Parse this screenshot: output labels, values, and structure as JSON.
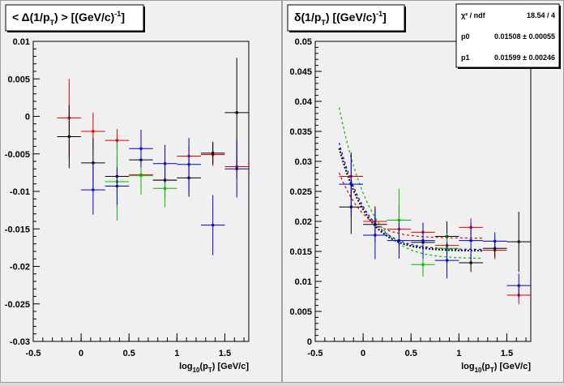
{
  "chart_data": [
    {
      "type": "scatter",
      "title": "< Δ(1/p_T) > [(GeV/c)^-1]",
      "xlabel": "log10(p_T) [GeV/c]",
      "ylabel": "",
      "xlim": [
        -0.5,
        1.75
      ],
      "ylim": [
        -0.03,
        0.01
      ],
      "xticks": [
        -0.5,
        0,
        0.5,
        1,
        1.5
      ],
      "xtick_labels": [
        "-0.5",
        "0",
        "0.5",
        "1",
        "1.5"
      ],
      "yticks": [
        -0.03,
        -0.025,
        -0.02,
        -0.015,
        -0.01,
        -0.005,
        0,
        0.005,
        0.01
      ],
      "ytick_labels": [
        "-0.03",
        "-0.025",
        "-0.02",
        "-0.015",
        "-0.01",
        "-0.005",
        "0",
        "0.005",
        "0.01"
      ],
      "series": [
        {
          "color": "#dd0000",
          "points": [
            {
              "x": -0.125,
              "y": -0.0002,
              "xerr": 0.125,
              "yerr": 0.0052
            },
            {
              "x": 0.125,
              "y": -0.002,
              "xerr": 0.125,
              "yerr": 0.0025
            },
            {
              "x": 0.375,
              "y": -0.0032,
              "xerr": 0.125,
              "yerr": 0.0015
            },
            {
              "x": 0.625,
              "y": -0.0078,
              "xerr": 0.125,
              "yerr": 0.0015
            },
            {
              "x": 0.875,
              "y": -0.0085,
              "xerr": 0.125,
              "yerr": 0.0015
            },
            {
              "x": 1.125,
              "y": -0.0053,
              "xerr": 0.125,
              "yerr": 0.0015
            },
            {
              "x": 1.375,
              "y": -0.0051,
              "xerr": 0.125,
              "yerr": 0.0015
            },
            {
              "x": 1.625,
              "y": -0.0067,
              "xerr": 0.125,
              "yerr": 0.0015
            }
          ]
        },
        {
          "color": "#000000",
          "points": [
            {
              "x": -0.125,
              "y": -0.0027,
              "xerr": 0.125,
              "yerr": 0.0042
            },
            {
              "x": 0.125,
              "y": -0.0062,
              "xerr": 0.125,
              "yerr": 0.0033
            },
            {
              "x": 0.375,
              "y": -0.008,
              "xerr": 0.125,
              "yerr": 0.0025
            },
            {
              "x": 0.625,
              "y": -0.0058,
              "xerr": 0.125,
              "yerr": 0.0025
            },
            {
              "x": 0.875,
              "y": -0.0085,
              "xerr": 0.125,
              "yerr": 0.0025
            },
            {
              "x": 1.125,
              "y": -0.0082,
              "xerr": 0.125,
              "yerr": 0.0025
            },
            {
              "x": 1.375,
              "y": -0.0049,
              "xerr": 0.125,
              "yerr": 0.0015
            },
            {
              "x": 1.625,
              "y": 0.0005,
              "xerr": 0.125,
              "yerr": 0.0073
            }
          ]
        },
        {
          "color": "#00bb00",
          "points": [
            {
              "x": 0.375,
              "y": -0.0087,
              "xerr": 0.125,
              "yerr": 0.0052
            },
            {
              "x": 0.625,
              "y": -0.0079,
              "xerr": 0.125,
              "yerr": 0.0025
            },
            {
              "x": 0.875,
              "y": -0.0096,
              "xerr": 0.125,
              "yerr": 0.0025
            }
          ]
        },
        {
          "color": "#0000cc",
          "points": [
            {
              "x": 0.125,
              "y": -0.0098,
              "xerr": 0.125,
              "yerr": 0.0033
            },
            {
              "x": 0.375,
              "y": -0.0093,
              "xerr": 0.125,
              "yerr": 0.0025
            },
            {
              "x": 0.625,
              "y": -0.0043,
              "xerr": 0.125,
              "yerr": 0.0025
            },
            {
              "x": 0.875,
              "y": -0.0063,
              "xerr": 0.125,
              "yerr": 0.0025
            },
            {
              "x": 1.125,
              "y": -0.0064,
              "xerr": 0.125,
              "yerr": 0.0035
            },
            {
              "x": 1.375,
              "y": -0.0145,
              "xerr": 0.125,
              "yerr": 0.004
            },
            {
              "x": 1.625,
              "y": -0.007,
              "xerr": 0.125,
              "yerr": 0.0038
            }
          ]
        }
      ]
    },
    {
      "type": "scatter",
      "title": "δ(1/p_T) [(GeV/c)^-1]",
      "xlabel": "log10(p_T) [GeV/c]",
      "ylabel": "",
      "xlim": [
        -0.5,
        1.75
      ],
      "ylim": [
        0,
        0.05
      ],
      "xticks": [
        -0.5,
        0,
        0.5,
        1,
        1.5
      ],
      "xtick_labels": [
        "-0.5",
        "0",
        "0.5",
        "1",
        "1.5"
      ],
      "yticks": [
        0,
        0.005,
        0.01,
        0.015,
        0.02,
        0.025,
        0.03,
        0.035,
        0.04,
        0.045,
        0.05
      ],
      "ytick_labels": [
        "0",
        "0.005",
        "0.01",
        "0.015",
        "0.02",
        "0.025",
        "0.03",
        "0.035",
        "0.04",
        "0.045",
        "0.05"
      ],
      "stats_box": [
        {
          "label": "χ² / ndf",
          "value": "18.54 / 4"
        },
        {
          "label": "p0",
          "value": "0.01508 ± 0.00055"
        },
        {
          "label": "p1",
          "value": "0.01599 ± 0.00246"
        }
      ],
      "series": [
        {
          "color": "#dd0000",
          "points": [
            {
              "x": -0.125,
              "y": 0.0275,
              "xerr": 0.125,
              "yerr": 0.004
            },
            {
              "x": 0.125,
              "y": 0.02,
              "xerr": 0.125,
              "yerr": 0.002
            },
            {
              "x": 0.375,
              "y": 0.0187,
              "xerr": 0.125,
              "yerr": 0.0015
            },
            {
              "x": 0.625,
              "y": 0.0182,
              "xerr": 0.125,
              "yerr": 0.0015
            },
            {
              "x": 0.875,
              "y": 0.016,
              "xerr": 0.125,
              "yerr": 0.0015
            },
            {
              "x": 1.125,
              "y": 0.019,
              "xerr": 0.125,
              "yerr": 0.0015
            },
            {
              "x": 1.375,
              "y": 0.0152,
              "xerr": 0.125,
              "yerr": 0.0015
            },
            {
              "x": 1.625,
              "y": 0.0077,
              "xerr": 0.125,
              "yerr": 0.0015
            }
          ]
        },
        {
          "color": "#000000",
          "points": [
            {
              "x": -0.125,
              "y": 0.0224,
              "xerr": 0.125,
              "yerr": 0.0045
            },
            {
              "x": 0.125,
              "y": 0.0195,
              "xerr": 0.125,
              "yerr": 0.003
            },
            {
              "x": 0.375,
              "y": 0.0202,
              "xerr": 0.125,
              "yerr": 0.0025
            },
            {
              "x": 0.625,
              "y": 0.0165,
              "xerr": 0.125,
              "yerr": 0.0025
            },
            {
              "x": 0.875,
              "y": 0.0175,
              "xerr": 0.125,
              "yerr": 0.0025
            },
            {
              "x": 1.125,
              "y": 0.0131,
              "xerr": 0.125,
              "yerr": 0.0015
            },
            {
              "x": 1.375,
              "y": 0.0155,
              "xerr": 0.125,
              "yerr": 0.0015
            },
            {
              "x": 1.625,
              "y": 0.0166,
              "xerr": 0.125,
              "yerr": 0.005
            }
          ]
        },
        {
          "color": "#00bb00",
          "points": [
            {
              "x": 0.375,
              "y": 0.0202,
              "xerr": 0.125,
              "yerr": 0.0052
            },
            {
              "x": 0.625,
              "y": 0.0128,
              "xerr": 0.125,
              "yerr": 0.002
            },
            {
              "x": 0.875,
              "y": 0.0155,
              "xerr": 0.125,
              "yerr": 0.0025
            }
          ]
        },
        {
          "color": "#0000cc",
          "points": [
            {
              "x": -0.125,
              "y": 0.0262,
              "xerr": 0.125,
              "yerr": 0.0052
            },
            {
              "x": 0.125,
              "y": 0.0177,
              "xerr": 0.125,
              "yerr": 0.004
            },
            {
              "x": 0.375,
              "y": 0.0168,
              "xerr": 0.125,
              "yerr": 0.003
            },
            {
              "x": 0.625,
              "y": 0.0168,
              "xerr": 0.125,
              "yerr": 0.003
            },
            {
              "x": 0.875,
              "y": 0.0135,
              "xerr": 0.125,
              "yerr": 0.003
            },
            {
              "x": 1.125,
              "y": 0.0168,
              "xerr": 0.125,
              "yerr": 0.003
            },
            {
              "x": 1.375,
              "y": 0.0167,
              "xerr": 0.125,
              "yerr": 0.0015
            },
            {
              "x": 1.625,
              "y": 0.0093,
              "xerr": 0.125,
              "yerr": 0.002
            }
          ]
        }
      ],
      "fit_curves": [
        {
          "color": "#000000",
          "p0": 0.01508,
          "p1": 0.01599,
          "dashed": false
        },
        {
          "color": "#dd0000",
          "p0": 0.0172,
          "p1": 0.0125,
          "dashed": true
        },
        {
          "color": "#00bb00",
          "p0": 0.0138,
          "p1": 0.0205,
          "dashed": true
        },
        {
          "color": "#0000cc",
          "p0": 0.0153,
          "p1": 0.0165,
          "dashed": true
        }
      ]
    }
  ]
}
